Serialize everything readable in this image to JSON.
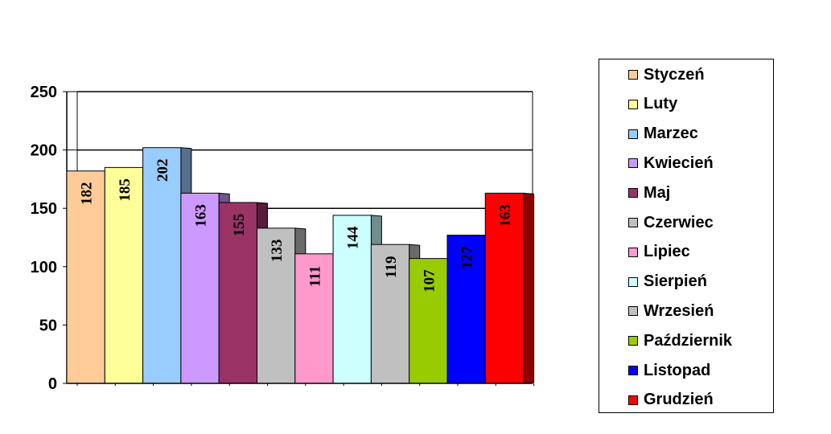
{
  "chart_data": {
    "type": "bar",
    "categories": [
      "Styczeń",
      "Luty",
      "Marzec",
      "Kwiecień",
      "Maj",
      "Czerwiec",
      "Lipiec",
      "Sierpień",
      "Wrzesień",
      "Październik",
      "Listopad",
      "Grudzień"
    ],
    "values": [
      182,
      185,
      202,
      163,
      155,
      133,
      111,
      144,
      119,
      107,
      127,
      163
    ],
    "data_labels": [
      "182",
      "185",
      "202",
      "163",
      "155",
      "133",
      "111",
      "144",
      "119",
      "107",
      "127",
      "163"
    ],
    "colors": [
      "#FFCC99",
      "#FFFF99",
      "#99CCFF",
      "#CC99FF",
      "#993366",
      "#C0C0C0",
      "#FF99CC",
      "#CCFFFF",
      "#C0C0C0",
      "#99CC00",
      "#0000FF",
      "#FF0000"
    ],
    "ylim": [
      0,
      250
    ],
    "yticks": [
      0,
      50,
      100,
      150,
      200,
      250
    ],
    "ytick_labels": [
      "0",
      "50",
      "100",
      "150",
      "200",
      "250"
    ],
    "title": "",
    "xlabel": "",
    "ylabel": "",
    "grid": true,
    "legend_position": "right",
    "style": "3d-column"
  }
}
